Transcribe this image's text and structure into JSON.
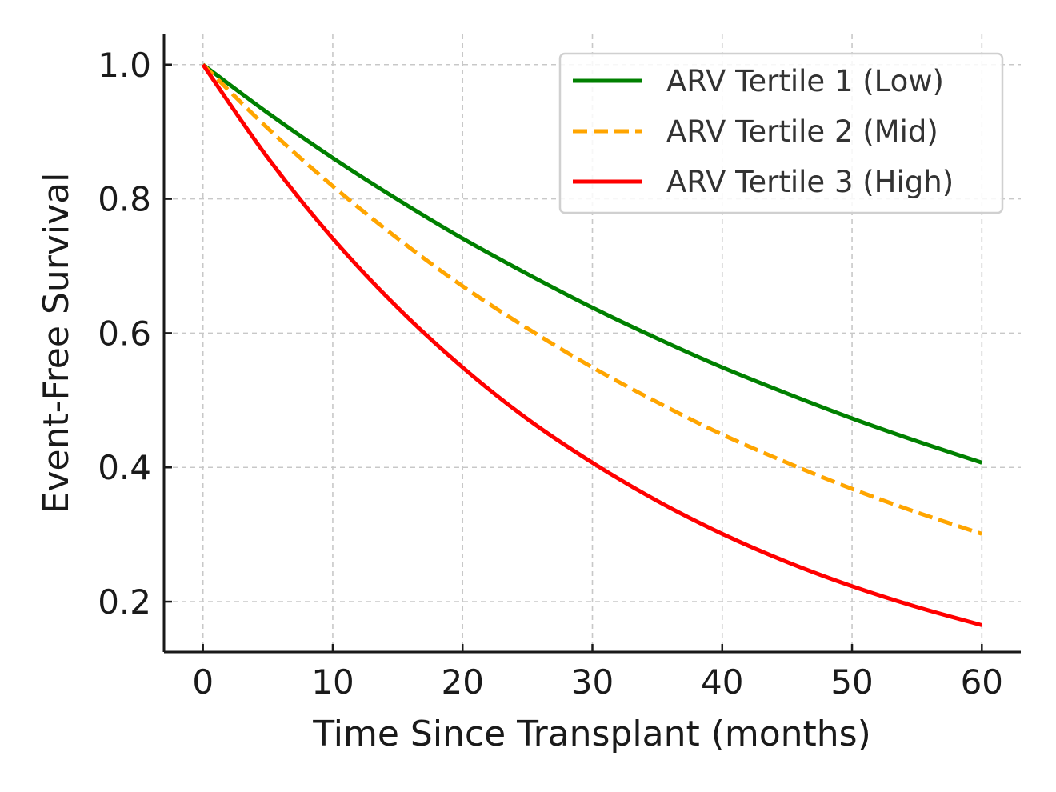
{
  "chart_data": {
    "type": "line",
    "title": "",
    "xlabel": "Time Since Transplant (months)",
    "ylabel": "Event-Free Survival",
    "xlim": [
      -3,
      63
    ],
    "ylim": [
      0.125,
      1.045
    ],
    "x_ticks": [
      0,
      10,
      20,
      30,
      40,
      50,
      60
    ],
    "x_tick_labels": [
      "0",
      "10",
      "20",
      "30",
      "40",
      "50",
      "60"
    ],
    "y_ticks": [
      0.2,
      0.4,
      0.6,
      0.8,
      1.0
    ],
    "y_tick_labels": [
      "0.2",
      "0.4",
      "0.6",
      "0.8",
      "1.0"
    ],
    "grid": true,
    "legend_position": "top-right",
    "x": [
      0,
      5,
      10,
      15,
      20,
      25,
      30,
      35,
      40,
      45,
      50,
      55,
      60
    ],
    "series": [
      {
        "name": "ARV Tertile 1 (Low)",
        "color": "#008000",
        "dash": "solid",
        "values": [
          1.0,
          0.928,
          0.861,
          0.799,
          0.741,
          0.688,
          0.638,
          0.592,
          0.549,
          0.51,
          0.473,
          0.439,
          0.407
        ]
      },
      {
        "name": "ARV Tertile 2 (Mid)",
        "color": "#FFA500",
        "dash": "dashed",
        "values": [
          1.0,
          0.905,
          0.819,
          0.741,
          0.67,
          0.607,
          0.549,
          0.497,
          0.449,
          0.407,
          0.368,
          0.333,
          0.301
        ]
      },
      {
        "name": "ARV Tertile 3 (High)",
        "color": "#FF0000",
        "dash": "solid",
        "values": [
          1.0,
          0.861,
          0.741,
          0.638,
          0.549,
          0.472,
          0.407,
          0.35,
          0.301,
          0.259,
          0.223,
          0.192,
          0.165
        ]
      }
    ]
  }
}
